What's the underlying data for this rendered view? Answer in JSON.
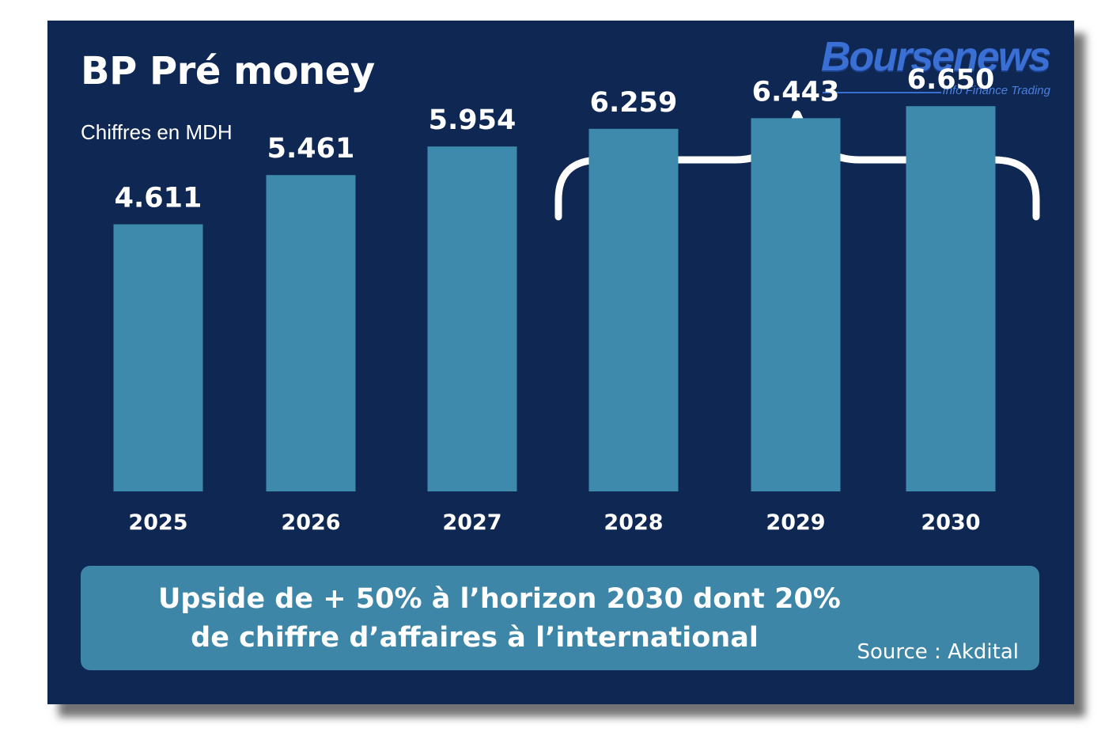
{
  "header": {
    "title": "BP Pré money",
    "subtitle": "Chiffres en MDH"
  },
  "logo": {
    "name": "Boursenews",
    "tagline": "Info Finance Trading"
  },
  "banner": {
    "line1": "Upside de + 50% à l’horizon 2030 dont 20%",
    "line2": "de chiffre d’affaires à l’international",
    "source": "Source : Akdital"
  },
  "colors": {
    "background": "#0f2753",
    "bar": "#3d8aad",
    "banner": "#3d86a8",
    "text": "#ffffff",
    "logo": "#3a6fd4"
  },
  "chart_data": {
    "type": "bar",
    "categories": [
      "2025",
      "2026",
      "2027",
      "2028",
      "2029",
      "2030"
    ],
    "values": [
      4611,
      5461,
      5954,
      6259,
      6443,
      6650
    ],
    "value_labels": [
      "4.611",
      "5.461",
      "5.954",
      "6.259",
      "6.443",
      "6.650"
    ],
    "title": "BP Pré money",
    "subtitle": "Chiffres en MDH",
    "ylim": [
      0,
      7800
    ],
    "grid": false,
    "legend": "none",
    "annotation": "bracket over 2028–2030"
  }
}
